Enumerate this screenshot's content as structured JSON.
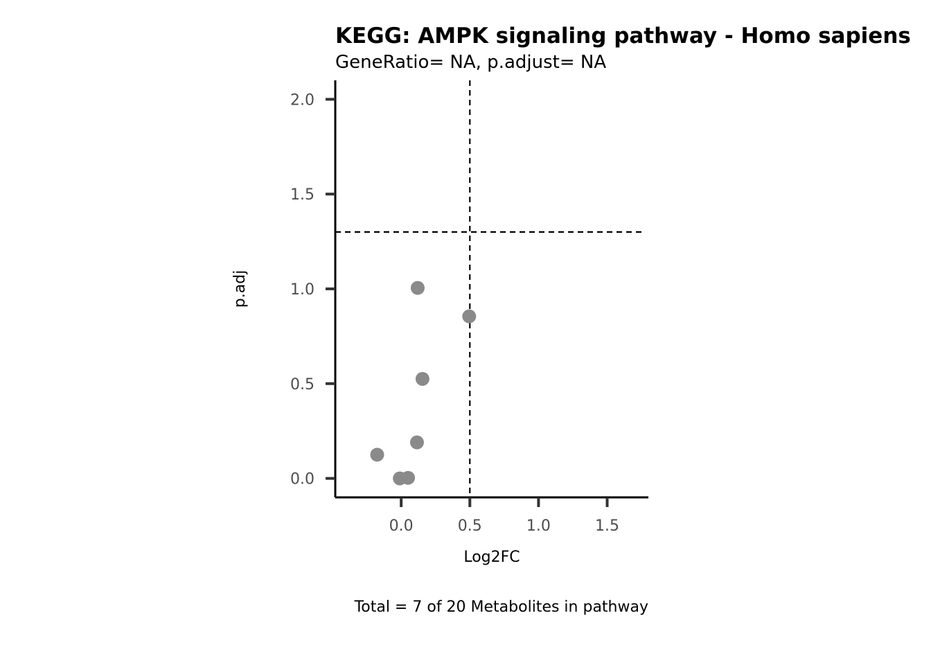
{
  "chart_data": {
    "type": "scatter",
    "title": "KEGG: AMPK signaling pathway - Homo sapiens",
    "subtitle": "GeneRatio= NA, p.adjust= NA",
    "xlabel": "Log2FC",
    "ylabel": "p.adj",
    "caption": "Total = 7 of 20 Metabolites in pathway",
    "xlim": [
      -0.48,
      1.8
    ],
    "ylim": [
      -0.1,
      2.1
    ],
    "x_ticks": [
      0.0,
      0.5,
      1.0,
      1.5
    ],
    "x_tick_labels": [
      "0.0",
      "0.5",
      "1.0",
      "1.5"
    ],
    "y_ticks": [
      0.0,
      0.5,
      1.0,
      1.5,
      2.0
    ],
    "y_tick_labels": [
      "0.0",
      "0.5",
      "1.0",
      "1.5",
      "2.0"
    ],
    "vline_x": 0.5,
    "hline_y": 1.3,
    "point_color": "#8a8a8a",
    "points": [
      {
        "x": 0.12,
        "y": 1.005
      },
      {
        "x": 0.495,
        "y": 0.855
      },
      {
        "x": 0.155,
        "y": 0.525
      },
      {
        "x": 0.115,
        "y": 0.19
      },
      {
        "x": -0.175,
        "y": 0.125
      },
      {
        "x": -0.01,
        "y": 0.0
      },
      {
        "x": 0.05,
        "y": 0.003
      }
    ],
    "grid": false
  }
}
